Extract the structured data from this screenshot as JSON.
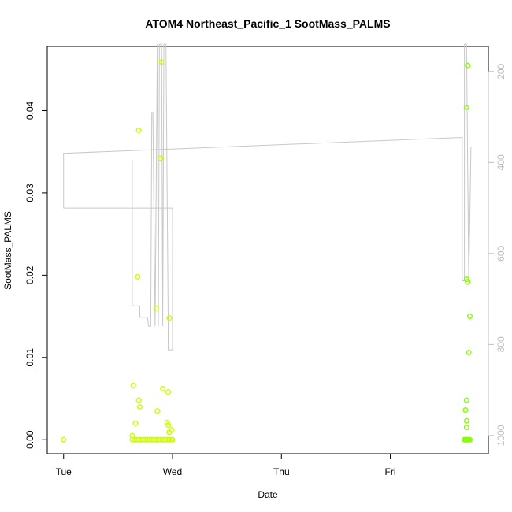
{
  "chart_data": {
    "type": "scatter",
    "title": "ATOM4 Northeast_Pacific_1 SootMass_PALMS",
    "xlabel": "Date",
    "ylabel": "SootMass_PALMS",
    "x_ticks": [
      "Tue",
      "Wed",
      "Thu",
      "Fri"
    ],
    "x_unit": "days since Tue 00:00",
    "xlim": [
      -0.15,
      3.9
    ],
    "ylim": [
      -0.0017,
      0.0478
    ],
    "y_ticks": [
      0.0,
      0.01,
      0.02,
      0.03,
      0.04
    ],
    "y_tick_labels": [
      "0.00",
      "0.01",
      "0.02",
      "0.03",
      "0.04"
    ],
    "right_axis": {
      "label": "",
      "ylim": [
        1040,
        145
      ],
      "ticks": [
        200,
        400,
        600,
        800,
        1000
      ],
      "color": "#bdbdbd"
    },
    "colors": {
      "points_yellow": "#ccff00",
      "points_green": "#88ff00",
      "line": "#c8c8c8"
    },
    "series": [
      {
        "kind": "points",
        "color": "#ccff00",
        "points": [
          [
            0.0,
            0.0
          ],
          [
            0.63,
            0.0005
          ],
          [
            0.64,
            0.0066
          ],
          [
            0.66,
            0.002
          ],
          [
            0.68,
            0.0198
          ],
          [
            0.69,
            0.0376
          ],
          [
            0.69,
            0.0048
          ],
          [
            0.7,
            0.004
          ],
          [
            0.85,
            0.016
          ],
          [
            0.86,
            0.0035
          ],
          [
            0.89,
            0.0342
          ],
          [
            0.9,
            0.0459
          ],
          [
            0.91,
            0.0062
          ],
          [
            0.95,
            0.0021
          ],
          [
            0.96,
            0.0018
          ],
          [
            0.96,
            0.0058
          ],
          [
            0.97,
            0.0148
          ],
          [
            0.97,
            0.0009
          ],
          [
            0.99,
            0.0012
          ],
          [
            0.63,
            0.0
          ],
          [
            0.65,
            0.0
          ],
          [
            0.67,
            0.0
          ],
          [
            0.69,
            0.0
          ],
          [
            0.71,
            0.0
          ],
          [
            0.73,
            0.0
          ],
          [
            0.75,
            0.0
          ],
          [
            0.77,
            0.0
          ],
          [
            0.79,
            0.0
          ],
          [
            0.81,
            0.0
          ],
          [
            0.83,
            0.0
          ],
          [
            0.85,
            0.0
          ],
          [
            0.87,
            0.0
          ],
          [
            0.89,
            0.0
          ],
          [
            0.91,
            0.0
          ],
          [
            0.93,
            0.0
          ],
          [
            0.95,
            0.0
          ],
          [
            0.97,
            0.0
          ],
          [
            0.99,
            0.0
          ],
          [
            1.0,
            0.0
          ]
        ]
      },
      {
        "kind": "points",
        "color": "#88ff00",
        "points": [
          [
            3.7,
            0.0404
          ],
          [
            3.71,
            0.0455
          ],
          [
            3.7,
            0.0195
          ],
          [
            3.71,
            0.0192
          ],
          [
            3.73,
            0.015
          ],
          [
            3.72,
            0.0106
          ],
          [
            3.7,
            0.0048
          ],
          [
            3.69,
            0.0036
          ],
          [
            3.7,
            0.0023
          ],
          [
            3.7,
            0.0015
          ],
          [
            3.68,
            0.0
          ],
          [
            3.69,
            0.0
          ],
          [
            3.7,
            0.0
          ],
          [
            3.71,
            0.0
          ],
          [
            3.72,
            0.0
          ],
          [
            3.73,
            0.0
          ]
        ]
      },
      {
        "kind": "line",
        "axis": "right",
        "color": "#c8c8c8",
        "points": [
          [
            0.0,
            500
          ],
          [
            0.0,
            380
          ],
          [
            3.66,
            345
          ],
          [
            3.66,
            660
          ],
          [
            3.68,
            660
          ],
          [
            3.68,
            140
          ],
          [
            3.7,
            140
          ],
          [
            3.72,
            665
          ],
          [
            3.74,
            365
          ]
        ]
      },
      {
        "kind": "line",
        "axis": "right",
        "color": "#c8c8c8",
        "points": [
          [
            0.0,
            500
          ],
          [
            1.0,
            500
          ],
          [
            1.0,
            812
          ],
          [
            0.96,
            812
          ],
          [
            0.96,
            745
          ],
          [
            0.94,
            140
          ],
          [
            0.92,
            140
          ],
          [
            0.91,
            760
          ],
          [
            0.9,
            140
          ],
          [
            0.88,
            140
          ],
          [
            0.87,
            760
          ],
          [
            0.86,
            140
          ],
          [
            0.84,
            760
          ],
          [
            0.82,
            290
          ],
          [
            0.81,
            290
          ],
          [
            0.8,
            760
          ],
          [
            0.78,
            760
          ],
          [
            0.77,
            740
          ],
          [
            0.7,
            740
          ],
          [
            0.7,
            715
          ],
          [
            0.63,
            715
          ],
          [
            0.63,
            395
          ]
        ]
      }
    ]
  }
}
